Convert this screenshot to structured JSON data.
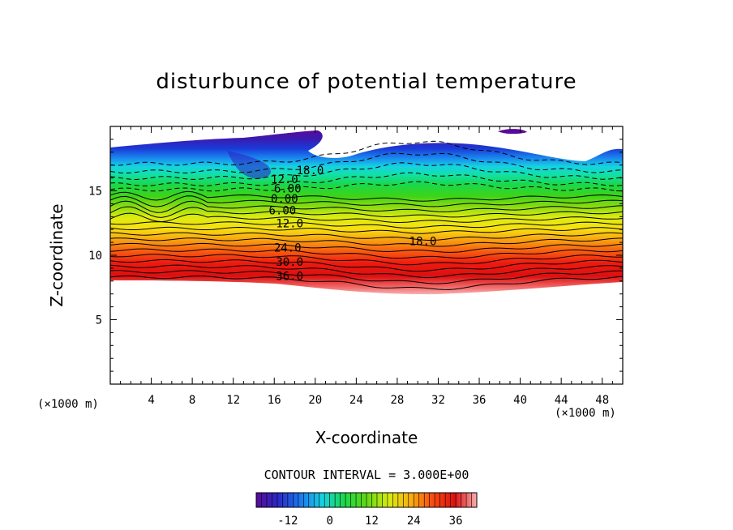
{
  "chart_data": {
    "type": "contour",
    "title": "disturbunce of potential temperature",
    "xlabel": "X-coordinate",
    "ylabel": "Z-coordinate",
    "x_unit": "(×1000 m)",
    "y_unit": "(×1000 m)",
    "xlim": [
      0,
      50
    ],
    "ylim": [
      0,
      20
    ],
    "x_ticks": [
      4,
      8,
      12,
      16,
      20,
      24,
      28,
      32,
      36,
      40,
      44,
      48
    ],
    "y_ticks": [
      5,
      10,
      15
    ],
    "contour_interval_text": "CONTOUR INTERVAL = 3.000E+00",
    "contour_interval": 3.0,
    "contour_labels": [
      {
        "text": "18.0",
        "x": 19.5,
        "z": 16.6
      },
      {
        "text": "12.0",
        "x": 17.0,
        "z": 15.9
      },
      {
        "text": "6.00",
        "x": 17.3,
        "z": 15.2
      },
      {
        "text": "0.00",
        "x": 17.0,
        "z": 14.4
      },
      {
        "text": "6.00",
        "x": 16.8,
        "z": 13.5
      },
      {
        "text": "12.0",
        "x": 17.5,
        "z": 12.5
      },
      {
        "text": "18.0",
        "x": 30.5,
        "z": 11.1
      },
      {
        "text": "24.0",
        "x": 17.3,
        "z": 10.6
      },
      {
        "text": "30.0",
        "x": 17.5,
        "z": 9.5
      },
      {
        "text": "36.0",
        "x": 17.5,
        "z": 8.4
      }
    ],
    "colorbar": {
      "range": [
        -21,
        42
      ],
      "tick_labels": [
        "-12",
        "0",
        "12",
        "24",
        "36"
      ],
      "tick_values": [
        -12,
        0,
        12,
        24,
        36
      ]
    }
  }
}
